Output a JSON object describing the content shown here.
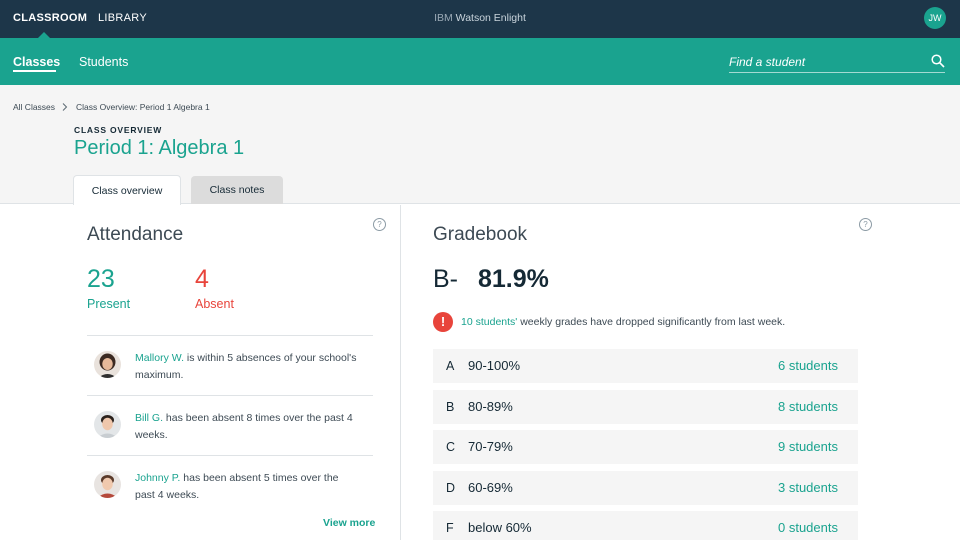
{
  "topbar": {
    "nav": [
      "CLASSROOM",
      "LIBRARY"
    ],
    "brand_prefix": "IBM",
    "brand_name": "Watson Enlight",
    "user_initials": "JW"
  },
  "subnav": {
    "tabs": [
      "Classes",
      "Students"
    ],
    "search_placeholder": "Find a student"
  },
  "breadcrumb": {
    "root": "All Classes",
    "current": "Class Overview: Period 1 Algebra 1"
  },
  "header": {
    "eyebrow": "CLASS OVERVIEW",
    "title": "Period 1: Algebra 1",
    "tabs": [
      "Class overview",
      "Class notes"
    ]
  },
  "attendance": {
    "title": "Attendance",
    "help": "?",
    "present_count": "23",
    "present_label": "Present",
    "absent_count": "4",
    "absent_label": "Absent",
    "alerts": [
      {
        "name": "Mallory W.",
        "text": " is within 5 absences of your school's maximum."
      },
      {
        "name": "Bill G.",
        "text": " has been absent 8 times over the past 4 weeks."
      },
      {
        "name": "Johnny P.",
        "text": " has been absent 5 times over the past 4 weeks."
      }
    ],
    "view_more": "View more"
  },
  "gradebook": {
    "title": "Gradebook",
    "help": "?",
    "letter": "B-",
    "percent": "81.9%",
    "warning_icon": "!",
    "warning_link": "10 students'",
    "warning_text": " weekly grades have dropped significantly from last week.",
    "rows": [
      {
        "grade": "A",
        "range": "90-100%",
        "count": "6 students"
      },
      {
        "grade": "B",
        "range": "80-89%",
        "count": "8 students"
      },
      {
        "grade": "C",
        "range": "70-79%",
        "count": "9 students"
      },
      {
        "grade": "D",
        "range": "60-69%",
        "count": "3 students"
      },
      {
        "grade": "F",
        "range": "below 60%",
        "count": "0 students"
      }
    ]
  },
  "colors": {
    "topbar": "#1d3649",
    "accent": "#1aa38f",
    "alert": "#e8443b"
  }
}
